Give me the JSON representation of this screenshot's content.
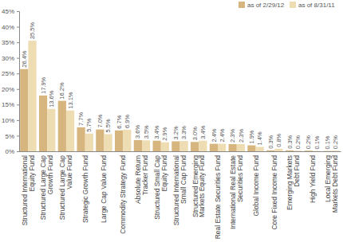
{
  "chart_data": {
    "type": "bar",
    "categories": [
      "Structured International\nEquity Fund",
      "Structured Large Cap\nGrowth Fund",
      "Structured Large Cap\nValue Fund",
      "Strategic Growth Fund",
      "Large Cap Value Fund",
      "Commodity Strategy Fund",
      "Absolute Return\nTracker Fund",
      "Structured Small Cap\nEquity Fund",
      "Structured International\nSmall Cap Fund",
      "Structured Emerging\nMarkets Equity Fund",
      "Real Estate Securities Fund",
      "International Real Estate\nSecurities Fund",
      "Global Income Fund",
      "Core Fixed Income Fund",
      "Emerging Markets\nDebt Fund",
      "High Yield Fund",
      "Local Emerging\nMarkets Debt Fund"
    ],
    "series": [
      {
        "name": "as of 2/29/12",
        "color": "#d6b57e",
        "values": [
          26.4,
          17.9,
          16.2,
          7.7,
          7.0,
          6.7,
          3.6,
          3.4,
          3.2,
          3.0,
          2.4,
          2.3,
          1.9,
          0.3,
          0.3,
          0.2,
          0.1
        ],
        "value_labels": [
          "26.4%",
          "17.9%",
          "16.2%",
          "7.7%",
          "7.0%",
          "6.7%",
          "3.6%",
          "3.4%",
          "3.2%",
          "3.0%",
          "2.4%",
          "2.3%",
          "1.9%",
          "0.3%",
          "0.3%",
          "0.2%",
          "0.1%"
        ]
      },
      {
        "name": "as of 8/31/11",
        "color": "#eedcb3",
        "values": [
          35.5,
          13.6,
          13.1,
          5.7,
          5.5,
          6.9,
          3.5,
          2.9,
          3.3,
          3.4,
          2.4,
          2.3,
          1.4,
          0.8,
          0.2,
          0.1,
          0.2
        ],
        "value_labels": [
          "35.5%",
          "13.6%",
          "13.1%",
          "5.7%",
          "5.5%",
          "6.9%",
          "3.5%",
          "2.9%",
          "3.3%",
          "3.4%",
          "2.4%",
          "2.3%",
          "1.4%",
          "0.8%",
          "0.2%",
          "0.1%",
          "0.2%"
        ]
      }
    ],
    "ylim": [
      0,
      45
    ],
    "yticks": [
      {
        "value": 0,
        "label": "0%"
      },
      {
        "value": 5,
        "label": "5%"
      },
      {
        "value": 10,
        "label": "10%"
      },
      {
        "value": 15,
        "label": "15%"
      },
      {
        "value": 20,
        "label": "20%"
      },
      {
        "value": 25,
        "label": "25%"
      },
      {
        "value": 30,
        "label": "30%"
      },
      {
        "value": 35,
        "label": "35%"
      },
      {
        "value": 40,
        "label": "40%"
      },
      {
        "value": 45,
        "label": "45%"
      }
    ],
    "grid": false,
    "legend": "top-right",
    "data_labels": true
  }
}
